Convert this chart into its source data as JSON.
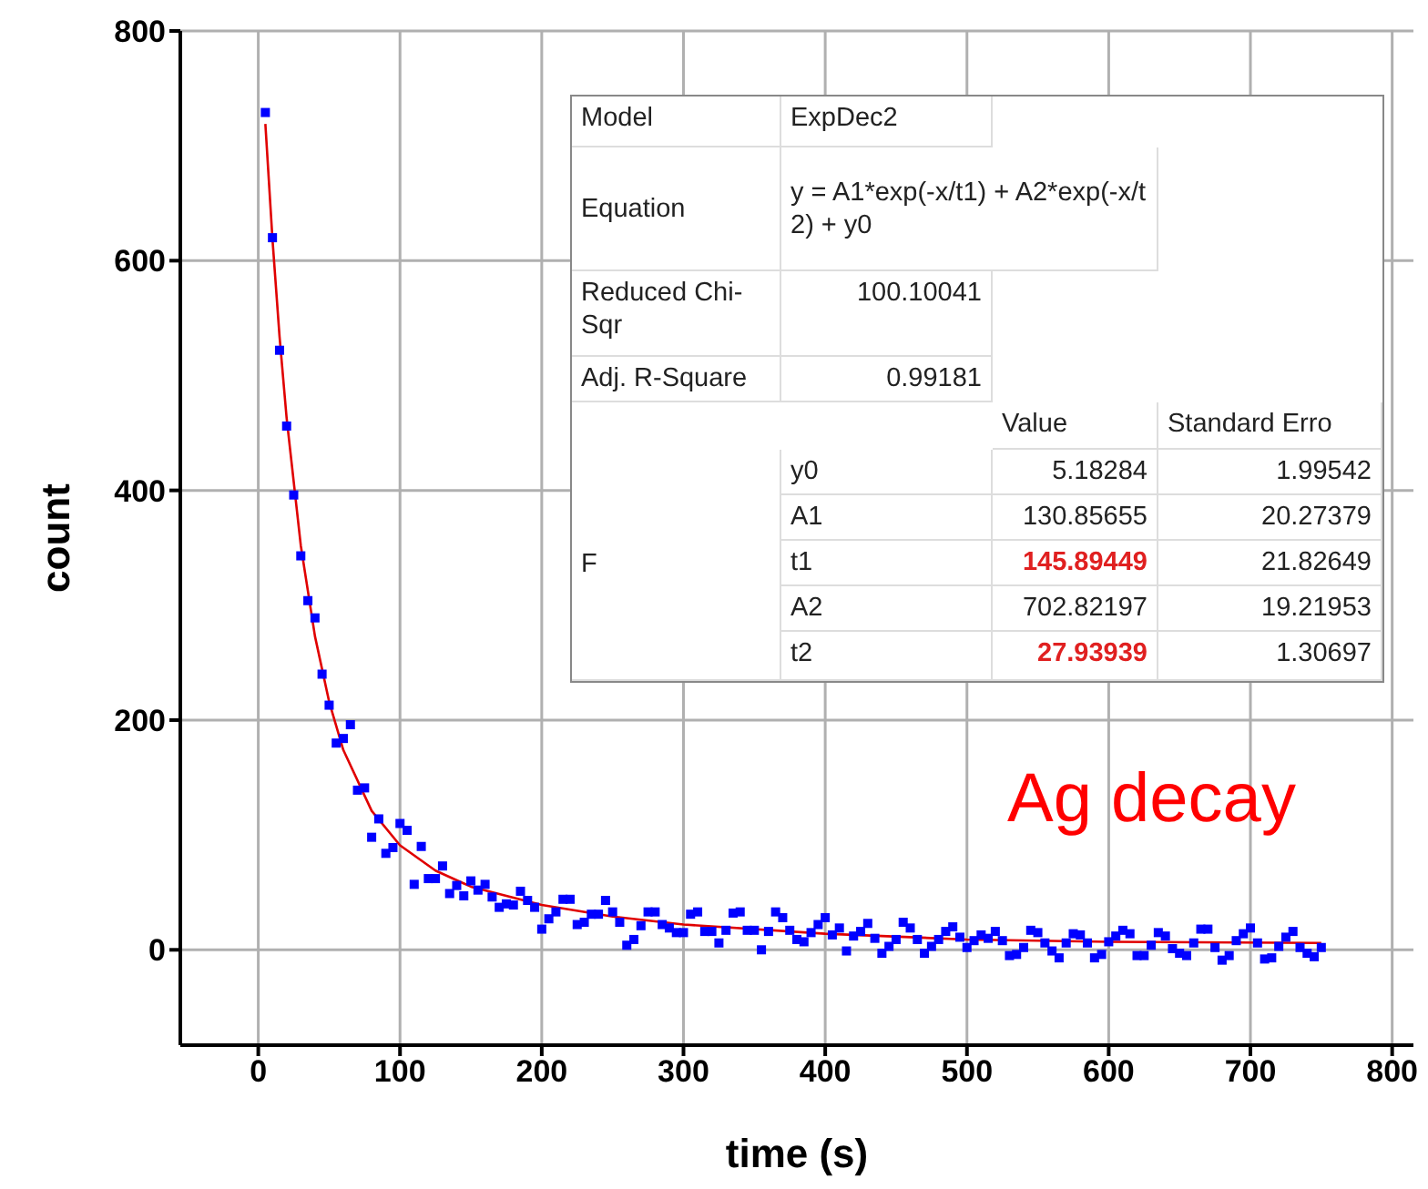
{
  "chart_data": {
    "type": "scatter",
    "xlabel": "time (s)",
    "ylabel": "count",
    "xlim": [
      -55,
      815
    ],
    "ylim": [
      -83,
      800
    ],
    "xticks": [
      0,
      100,
      200,
      300,
      400,
      500,
      600,
      700,
      800
    ],
    "yticks": [
      0,
      200,
      400,
      600,
      800
    ],
    "grid": true,
    "marker": "square",
    "series": [
      {
        "color": "#0000ff",
        "x": [
          5,
          10,
          15,
          20,
          25,
          30,
          35,
          40,
          45,
          50,
          55,
          60,
          65,
          70,
          75,
          80,
          85,
          90,
          95,
          100,
          105,
          110,
          115,
          120,
          125,
          130,
          135,
          140,
          145,
          150,
          155,
          160,
          165,
          170,
          175,
          180,
          185,
          190,
          195,
          200,
          205,
          210,
          215,
          220,
          225,
          230,
          235,
          240,
          245,
          250,
          255,
          260,
          265,
          270,
          275,
          280,
          285,
          290,
          295,
          300,
          305,
          310,
          315,
          320,
          325,
          330,
          335,
          340,
          345,
          350,
          355,
          360,
          365,
          370,
          375,
          380,
          385,
          390,
          395,
          400,
          405,
          410,
          415,
          420,
          425,
          430,
          435,
          440,
          445,
          450,
          455,
          460,
          465,
          470,
          475,
          480,
          485,
          490,
          495,
          500,
          505,
          510,
          515,
          520,
          525,
          530,
          535,
          540,
          545,
          550,
          555,
          560,
          565,
          570,
          575,
          580,
          585,
          590,
          595,
          600,
          605,
          610,
          615,
          620,
          625,
          630,
          635,
          640,
          645,
          650,
          655,
          660,
          665,
          670,
          675,
          680,
          685,
          690,
          695,
          700,
          705,
          710,
          715,
          720,
          725,
          730,
          735,
          740,
          745,
          750
        ],
        "values": [
          729,
          620,
          522,
          456,
          396,
          343,
          304,
          289,
          240,
          213,
          180,
          184,
          196,
          139,
          141,
          98,
          114,
          84,
          89,
          110,
          104,
          57,
          90,
          62,
          62,
          73,
          49,
          56,
          47,
          60,
          52,
          57,
          46,
          37,
          40,
          39,
          51,
          43,
          37,
          18,
          27,
          33,
          44,
          44,
          22,
          24,
          31,
          31,
          43,
          33,
          24,
          4,
          9,
          21,
          33,
          33,
          22,
          19,
          15,
          15,
          31,
          33,
          16,
          16,
          6,
          17,
          32,
          33,
          17,
          17,
          0,
          16,
          33,
          28,
          17,
          9,
          7,
          15,
          22,
          28,
          13,
          19,
          -1,
          12,
          16,
          23,
          10,
          -3,
          3,
          9,
          24,
          19,
          9,
          -3,
          3,
          9,
          16,
          20,
          11,
          2,
          8,
          13,
          10,
          16,
          8,
          -5,
          -4,
          2,
          17,
          15,
          6,
          -1,
          -7,
          6,
          14,
          13,
          6,
          -7,
          -4,
          7,
          12,
          17,
          14,
          -5,
          -5,
          4,
          15,
          12,
          1,
          -3,
          -5,
          6,
          18,
          18,
          2,
          -9,
          -5,
          8,
          14,
          19,
          6,
          -8,
          -7,
          3,
          11,
          16,
          2,
          -3,
          -6,
          2
        ]
      },
      {
        "type": "line",
        "color": "#e00000",
        "marker": "none",
        "x": [
          5,
          10,
          15,
          20,
          30,
          40,
          50,
          60,
          80,
          100,
          125,
          150,
          200,
          250,
          300,
          400,
          500,
          600,
          750
        ],
        "values": [
          719,
          619,
          534,
          463,
          352,
          273,
          216,
          174,
          121,
          91,
          69,
          55,
          39,
          29,
          22,
          14,
          9,
          7,
          6
        ]
      }
    ],
    "annotations": [
      "Model",
      "ExpDec2",
      "Equation",
      "y = A1*exp(-x/t1) + A2*exp(-x/t2) + y0",
      "Reduced Chi-Sqr",
      "100.10041",
      "Adj. R-Square",
      "0.99181",
      "Value",
      "Standard Erro",
      "F",
      "y0",
      "5.18284",
      "1.99542",
      "A1",
      "130.85655",
      "20.27379",
      "t1",
      "145.89449",
      "21.82649",
      "A2",
      "702.82197",
      "19.21953",
      "t2",
      "27.93939",
      "1.30697",
      "Ag decay"
    ]
  }
}
